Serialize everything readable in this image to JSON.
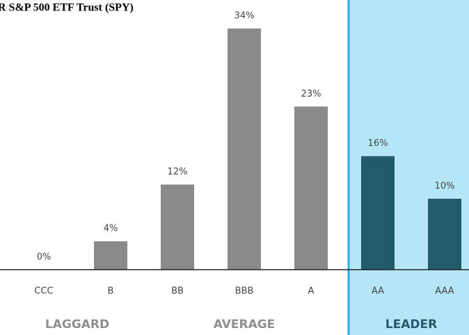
{
  "chart_data": {
    "type": "bar",
    "title": "R S&P 500 ETF Trust (SPY)",
    "categories": [
      "CCC",
      "B",
      "BB",
      "BBB",
      "A",
      "AA",
      "AAA"
    ],
    "values": [
      0,
      4,
      12,
      34,
      23,
      16,
      10
    ],
    "value_labels": [
      "0%",
      "4%",
      "12%",
      "34%",
      "23%",
      "16%",
      "10%"
    ],
    "colors": [
      "#8a8a8a",
      "#8a8a8a",
      "#8a8a8a",
      "#8a8a8a",
      "#8a8a8a",
      "#245b6b",
      "#245b6b"
    ],
    "ylim": [
      0,
      34
    ],
    "groups": [
      {
        "label": "LAGGARD",
        "span": [
          0,
          1
        ]
      },
      {
        "label": "AVERAGE",
        "span": [
          2,
          4
        ]
      },
      {
        "label": "LEADER",
        "span": [
          5,
          6
        ]
      }
    ],
    "highlight": {
      "from_index": 5,
      "color": "#b5e6f6",
      "line_color": "#2aabe2"
    }
  }
}
